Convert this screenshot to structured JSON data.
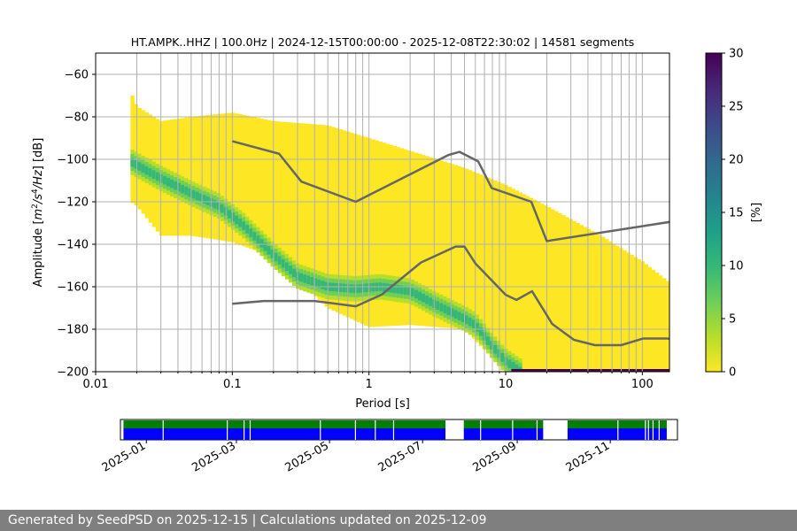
{
  "chart_data": [
    {
      "type": "heatmap",
      "title": "HT.AMPK..HHZ | 100.0Hz | 2024-12-15T00:00:00 - 2025-12-08T22:30:02 | 14581 segments",
      "xlabel": "Period [s]",
      "ylabel": "Amplitude [m²/s⁴/Hz] [dB]",
      "x_scale": "log",
      "xlim": [
        0.01,
        158
      ],
      "ylim": [
        -200,
        -50
      ],
      "x_ticks": [
        0.01,
        0.1,
        1,
        10,
        100
      ],
      "x_tick_labels": [
        "0.01",
        "0.1",
        "1",
        "10",
        "100"
      ],
      "y_ticks": [
        -200,
        -180,
        -160,
        -140,
        -120,
        -100,
        -80,
        -60
      ],
      "y_tick_labels": [
        "−200",
        "−180",
        "−160",
        "−140",
        "−120",
        "−100",
        "−80",
        "−60"
      ],
      "grid_periods": [
        0.02,
        0.03,
        0.04,
        0.05,
        0.06,
        0.07,
        0.08,
        0.09,
        0.2,
        0.3,
        0.4,
        0.5,
        0.6,
        0.7,
        0.8,
        0.9,
        2,
        3,
        4,
        5,
        6,
        7,
        8,
        9,
        20,
        30,
        40,
        50,
        60,
        70,
        80,
        90
      ],
      "grid": true,
      "colorbar": {
        "label": "[%]",
        "range": [
          0,
          30
        ],
        "ticks": [
          0,
          5,
          10,
          15,
          20,
          25,
          30
        ],
        "colormap": "viridis_r",
        "colors": [
          "#fde725",
          "#b5de2b",
          "#6ece58",
          "#35b779",
          "#1f9e89",
          "#26828e",
          "#31688e",
          "#3e4989",
          "#482878",
          "#440154"
        ]
      },
      "mode_curve": {
        "period": [
          0.018,
          0.03,
          0.05,
          0.08,
          0.12,
          0.2,
          0.3,
          0.5,
          0.8,
          1.2,
          2,
          3,
          4,
          5,
          6,
          8,
          10,
          13
        ],
        "db": [
          -101,
          -109,
          -116,
          -122,
          -131,
          -145,
          -155,
          -160,
          -161,
          -160,
          -162,
          -168,
          -172,
          -175,
          -178,
          -188,
          -195,
          -200
        ]
      },
      "envelope": {
        "period": [
          0.018,
          0.02,
          0.03,
          0.05,
          0.1,
          0.2,
          0.5,
          1,
          2,
          5,
          10,
          20,
          50,
          100,
          158
        ],
        "upper_db": [
          -68,
          -75,
          -82,
          -80,
          -78,
          -82,
          -84,
          -90,
          -96,
          -104,
          -112,
          -122,
          -136,
          -148,
          -158
        ],
        "lower_db": [
          -120,
          -122,
          -136,
          -136,
          -139,
          -146,
          -170,
          -179,
          -178,
          -180,
          -200,
          -200,
          -200,
          -200,
          -200
        ]
      },
      "nhnm": {
        "period": [
          0.1,
          0.22,
          0.32,
          0.8,
          3.8,
          4.6,
          6.3,
          7.9,
          15.4,
          20,
          354
        ],
        "db": [
          -91.5,
          -97.4,
          -110.5,
          -120,
          -98,
          -96.5,
          -101,
          -113.5,
          -120,
          -138.5,
          -126
        ]
      },
      "nlnm": {
        "period": [
          0.1,
          0.17,
          0.4,
          0.8,
          1.24,
          2.4,
          4.3,
          5,
          6,
          10,
          12,
          15.6,
          21.9,
          31.6,
          45,
          70,
          101,
          154,
          328
        ],
        "db": [
          -168,
          -166.7,
          -166.7,
          -169.2,
          -163.7,
          -148.6,
          -141.1,
          -141.1,
          -149,
          -163.8,
          -166.2,
          -162.1,
          -177.5,
          -185,
          -187.5,
          -187.5,
          -184.4,
          -184.4,
          -190
        ]
      },
      "reference_line_color": "#666666"
    },
    {
      "type": "timeline",
      "x_tick_labels": [
        "2025-01",
        "2025-03",
        "2025-05",
        "2025-07",
        "2025-09",
        "2025-11"
      ],
      "range": [
        "2024-12-15",
        "2025-12-15"
      ],
      "data_segments": [
        [
          "2024-12-17",
          "2025-07-16"
        ],
        [
          "2025-07-28",
          "2025-09-18"
        ],
        [
          "2025-10-04",
          "2025-12-08"
        ]
      ],
      "data_gaps": [
        "2025-01-12",
        "2025-02-23",
        "2025-03-06",
        "2025-03-10",
        "2025-04-25",
        "2025-05-18",
        "2025-05-31",
        "2025-06-12",
        "2025-08-08",
        "2025-08-29",
        "2025-09-14",
        "2025-11-06",
        "2025-11-24",
        "2025-11-26",
        "2025-11-29",
        "2025-12-03"
      ],
      "colors": {
        "upper": "#008000",
        "lower": "#0000ff"
      }
    }
  ],
  "footer": "Generated by SeedPSD on 2025-12-15 | Calculations updated on 2025-12-09"
}
